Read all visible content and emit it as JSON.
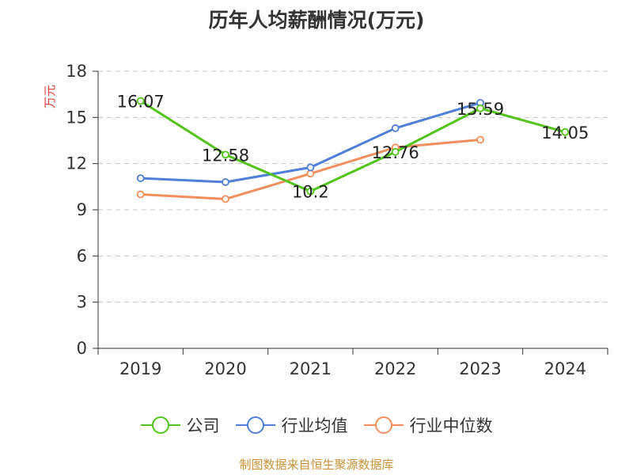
{
  "chart_data": {
    "type": "line",
    "title": "历年人均薪酬情况(万元)",
    "xlabel": "",
    "ylabel": "万元",
    "categories": [
      "2019",
      "2020",
      "2021",
      "2022",
      "2023",
      "2024"
    ],
    "ylim": [
      0,
      18
    ],
    "yticks": [
      "0",
      "3",
      "6",
      "9",
      "12",
      "15",
      "18"
    ],
    "grid": true,
    "legend_position": "bottom",
    "series": [
      {
        "name": "公司",
        "color": "#52c41a",
        "values": [
          16.07,
          12.58,
          10.2,
          12.76,
          15.59,
          14.05
        ],
        "labels": [
          "16.07",
          "12.58",
          "10.2",
          "12.76",
          "15.59",
          "14.05"
        ]
      },
      {
        "name": "行业均值",
        "color": "#4e7fd9",
        "values": [
          11.05,
          10.8,
          11.75,
          14.3,
          15.95,
          null
        ],
        "labels": []
      },
      {
        "name": "行业中位数",
        "color": "#f28f5c",
        "values": [
          10.0,
          9.7,
          11.35,
          13.05,
          13.55,
          null
        ],
        "labels": []
      }
    ]
  },
  "footer": {
    "source": "制图数据来自恒生聚源数据库"
  }
}
